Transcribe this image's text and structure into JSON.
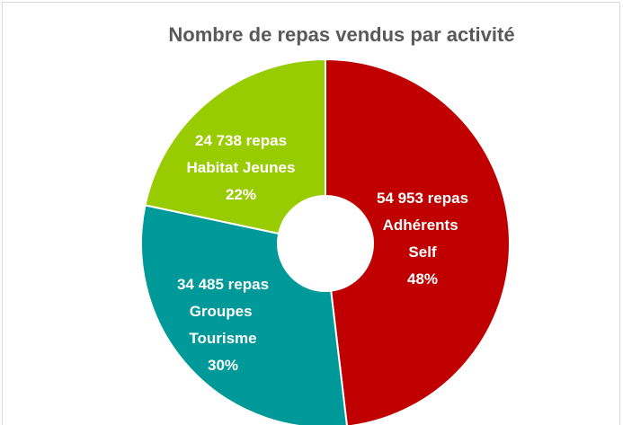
{
  "chart_data": {
    "type": "donut",
    "title": "Nombre de repas vendus  par activité",
    "categories": [
      "Adhérents Self",
      "Groupes Tourisme",
      "Habitat Jeunes"
    ],
    "values": [
      54953,
      34485,
      24738
    ],
    "value_labels": [
      "54 953 repas",
      "34 485 repas",
      "24 738 repas"
    ],
    "percentages": [
      48,
      30,
      22
    ],
    "percentage_labels": [
      "48%",
      "30%",
      "22%"
    ],
    "colors": [
      "#c00000",
      "#009999",
      "#99cc00"
    ]
  }
}
